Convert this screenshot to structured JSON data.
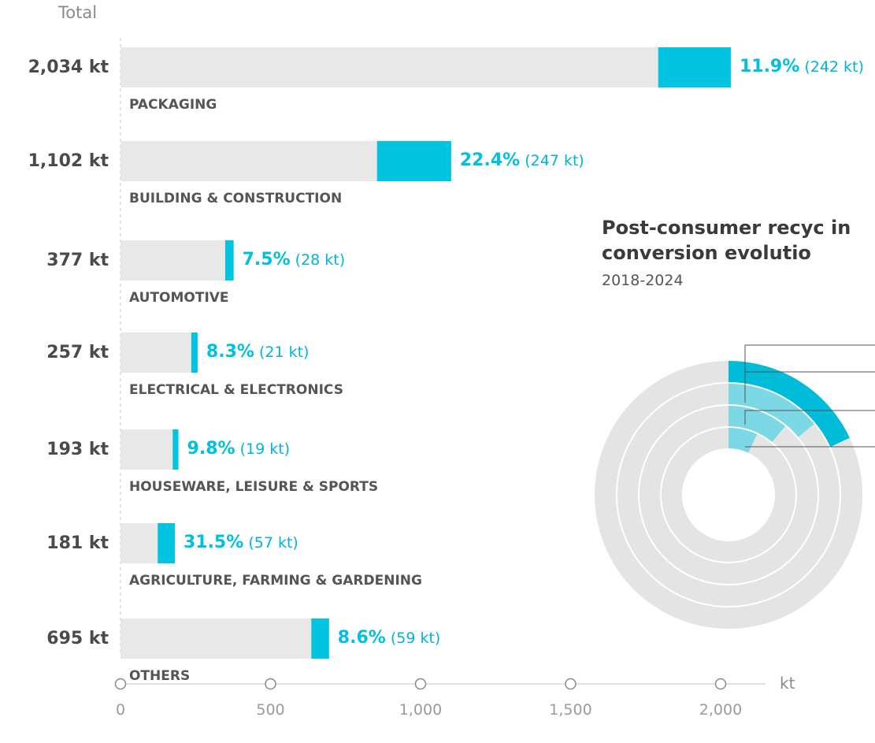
{
  "chart_data": [
    {
      "type": "bar",
      "title": "",
      "xlabel": "kt",
      "ylabel": "Total",
      "xlim": [
        0,
        2000
      ],
      "x_ticks": [
        "0",
        "500",
        "1,000",
        "1,500",
        "2,000"
      ],
      "x_tick_values": [
        0,
        500,
        1000,
        1500,
        2000
      ],
      "stacked": true,
      "colors": {
        "total": "#e8e8e8",
        "recycled": "#00c4e0"
      },
      "categories": [
        "PACKAGING",
        "BUILDING & CONSTRUCTION",
        "AUTOMOTIVE",
        "ELECTRICAL & ELECTRONICS",
        "HOUSEWARE, LEISURE & SPORTS",
        "AGRICULTURE, FARMING & GARDENING",
        "OTHERS"
      ],
      "totals": [
        2034,
        1102,
        377,
        257,
        193,
        181,
        695
      ],
      "total_labels": [
        "2,034 kt",
        "1,102 kt",
        "377 kt",
        "257 kt",
        "193 kt",
        "181 kt",
        "695 kt"
      ],
      "recycled": [
        242,
        247,
        28,
        21,
        19,
        57,
        59
      ],
      "pct_labels": [
        "11.9%",
        "22.4%",
        "7.5%",
        "8.3%",
        "9.8%",
        "31.5%",
        "8.6%"
      ],
      "kt_labels": [
        "(242 kt)",
        "(247 kt)",
        "(28 kt)",
        "(21 kt)",
        "(19 kt)",
        "(57 kt)",
        "(59 kt)"
      ]
    },
    {
      "type": "pie",
      "title": "Post-consumer recyc in conversion evolutio",
      "subtitle": "2018-2024",
      "note": "concentric radial rings, labels cropped at right edge",
      "ring_shares_percent": [
        18,
        14,
        11,
        7
      ],
      "ring_colors": [
        "#00bcd8",
        "#7dd8e6",
        "#7dd8e6",
        "#7dd8e6"
      ]
    }
  ]
}
